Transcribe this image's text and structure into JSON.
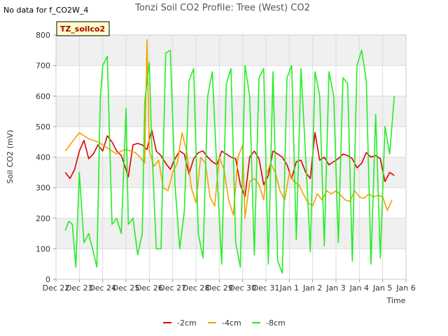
{
  "top_left_note": "No data for f_CO2W_4",
  "chart_data": {
    "type": "line",
    "title": "Tonzi Soil CO2 Profile: Tree (West) CO2",
    "xlabel": "Time",
    "ylabel": "Soil CO2 (mV)",
    "ylim": [
      0,
      800
    ],
    "xlim": [
      0,
      15
    ],
    "y_ticks": [
      0,
      100,
      200,
      300,
      400,
      500,
      600,
      700,
      800
    ],
    "x_ticks": [
      {
        "pos": 0,
        "label": "Dec 22"
      },
      {
        "pos": 1,
        "label": "Dec 23"
      },
      {
        "pos": 2,
        "label": "Dec 24"
      },
      {
        "pos": 3,
        "label": "Dec 25"
      },
      {
        "pos": 4,
        "label": "Dec 26"
      },
      {
        "pos": 5,
        "label": "Dec 27"
      },
      {
        "pos": 6,
        "label": "Dec 28"
      },
      {
        "pos": 7,
        "label": "Dec 29"
      },
      {
        "pos": 8,
        "label": "Dec 30"
      },
      {
        "pos": 9,
        "label": "Dec 31"
      },
      {
        "pos": 10,
        "label": "Jan 1"
      },
      {
        "pos": 11,
        "label": "Jan 2"
      },
      {
        "pos": 12,
        "label": "Jan 3"
      },
      {
        "pos": 13,
        "label": "Jan 4"
      },
      {
        "pos": 14,
        "label": "Jan 5"
      },
      {
        "pos": 15,
        "label": "Jan 6"
      }
    ],
    "grid": true,
    "legend_position": "bottom-center",
    "annotation_box": "TZ_soilco2",
    "series": [
      {
        "name": "-2cm",
        "color": "#dd0000",
        "x": [
          0.4,
          0.6,
          0.8,
          1.0,
          1.2,
          1.4,
          1.6,
          1.8,
          2.0,
          2.2,
          2.4,
          2.6,
          2.8,
          3.0,
          3.1,
          3.3,
          3.5,
          3.7,
          3.9,
          4.1,
          4.3,
          4.5,
          4.7,
          4.9,
          5.1,
          5.3,
          5.5,
          5.7,
          5.9,
          6.1,
          6.3,
          6.5,
          6.7,
          6.9,
          7.1,
          7.3,
          7.5,
          7.7,
          7.9,
          8.1,
          8.3,
          8.5,
          8.7,
          8.9,
          9.1,
          9.3,
          9.5,
          9.7,
          9.9,
          10.1,
          10.3,
          10.5,
          10.7,
          10.9,
          11.1,
          11.3,
          11.5,
          11.7,
          11.9,
          12.1,
          12.3,
          12.5,
          12.7,
          12.9,
          13.1,
          13.3,
          13.5,
          13.7,
          13.9,
          14.1,
          14.3,
          14.5
        ],
        "values": [
          350,
          330,
          360,
          420,
          455,
          395,
          410,
          440,
          420,
          470,
          450,
          420,
          405,
          360,
          335,
          440,
          445,
          440,
          425,
          490,
          420,
          405,
          380,
          360,
          395,
          420,
          410,
          345,
          395,
          415,
          420,
          400,
          385,
          375,
          420,
          410,
          400,
          395,
          310,
          270,
          400,
          420,
          395,
          310,
          340,
          420,
          410,
          400,
          375,
          330,
          385,
          390,
          350,
          330,
          480,
          390,
          400,
          375,
          385,
          395,
          410,
          405,
          395,
          365,
          380,
          415,
          400,
          405,
          395,
          320,
          350,
          340
        ]
      },
      {
        "name": "-4cm",
        "color": "#f5a000",
        "x": [
          0.4,
          0.6,
          0.8,
          1.0,
          1.2,
          1.4,
          1.6,
          1.8,
          2.0,
          2.2,
          2.4,
          2.6,
          2.8,
          3.0,
          3.2,
          3.4,
          3.6,
          3.8,
          3.9,
          4.0,
          4.2,
          4.4,
          4.6,
          4.8,
          5.0,
          5.2,
          5.4,
          5.6,
          5.8,
          6.0,
          6.2,
          6.4,
          6.6,
          6.8,
          7.0,
          7.2,
          7.4,
          7.6,
          7.8,
          8.0,
          8.1,
          8.3,
          8.5,
          8.7,
          8.9,
          9.0,
          9.2,
          9.4,
          9.6,
          9.8,
          10.0,
          10.2,
          10.4,
          10.6,
          10.8,
          11.0,
          11.2,
          11.4,
          11.6,
          11.8,
          12.0,
          12.2,
          12.4,
          12.6,
          12.8,
          13.0,
          13.2,
          13.4,
          13.6,
          13.8,
          14.0,
          14.2,
          14.4
        ],
        "values": [
          420,
          440,
          460,
          480,
          470,
          460,
          455,
          450,
          440,
          430,
          420,
          410,
          420,
          425,
          420,
          415,
          400,
          380,
          785,
          420,
          370,
          390,
          300,
          290,
          350,
          380,
          480,
          420,
          300,
          250,
          400,
          380,
          270,
          240,
          400,
          360,
          260,
          210,
          400,
          440,
          200,
          320,
          330,
          310,
          260,
          340,
          380,
          350,
          290,
          260,
          350,
          320,
          310,
          280,
          250,
          240,
          280,
          260,
          290,
          280,
          290,
          275,
          260,
          255,
          290,
          270,
          265,
          280,
          270,
          275,
          270,
          225,
          260
        ]
      },
      {
        "name": "-8cm",
        "color": "#22ee22",
        "x": [
          0.4,
          0.55,
          0.7,
          0.85,
          1.0,
          1.2,
          1.4,
          1.6,
          1.75,
          1.9,
          2.0,
          2.2,
          2.4,
          2.6,
          2.8,
          3.0,
          3.1,
          3.3,
          3.5,
          3.7,
          3.8,
          4.0,
          4.1,
          4.3,
          4.5,
          4.7,
          4.9,
          5.1,
          5.3,
          5.5,
          5.7,
          5.9,
          6.1,
          6.3,
          6.5,
          6.7,
          6.9,
          7.1,
          7.3,
          7.5,
          7.7,
          7.9,
          8.1,
          8.3,
          8.5,
          8.7,
          8.9,
          9.1,
          9.3,
          9.5,
          9.7,
          9.9,
          10.1,
          10.3,
          10.5,
          10.7,
          10.9,
          11.1,
          11.3,
          11.5,
          11.7,
          11.9,
          12.1,
          12.3,
          12.5,
          12.7,
          12.9,
          13.1,
          13.3,
          13.5,
          13.7,
          13.9,
          14.1,
          14.3,
          14.5
        ],
        "values": [
          160,
          190,
          180,
          40,
          350,
          120,
          150,
          90,
          40,
          590,
          700,
          730,
          180,
          200,
          150,
          560,
          180,
          200,
          80,
          150,
          580,
          710,
          450,
          100,
          100,
          740,
          750,
          310,
          100,
          220,
          650,
          690,
          150,
          70,
          600,
          680,
          350,
          50,
          640,
          690,
          120,
          40,
          700,
          600,
          80,
          660,
          690,
          50,
          680,
          60,
          20,
          660,
          700,
          130,
          690,
          400,
          90,
          680,
          600,
          110,
          680,
          600,
          120,
          660,
          640,
          60,
          700,
          750,
          650,
          50,
          540,
          70,
          500,
          410,
          600
        ]
      }
    ]
  }
}
